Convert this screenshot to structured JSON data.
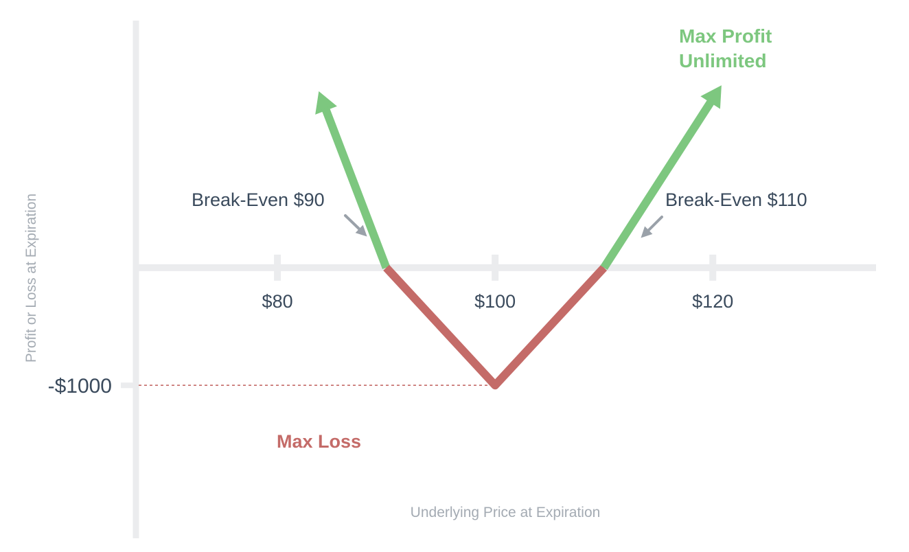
{
  "chart_data": {
    "type": "line",
    "xlabel": "Underlying Price at Expiration",
    "ylabel": "Profit or Loss at Expiration",
    "x_ticks": [
      {
        "value": 80,
        "label": "$80"
      },
      {
        "value": 100,
        "label": "$100"
      },
      {
        "value": 120,
        "label": "$120"
      }
    ],
    "y_ticks": [
      {
        "value": -1000,
        "label": "-$1000"
      }
    ],
    "xlim": [
      67,
      135
    ],
    "ylim": [
      -2300,
      2100
    ],
    "series": [
      {
        "color": "#7dc77f",
        "x": [
          83.8,
          90
        ],
        "y": [
          1500,
          0
        ],
        "arrow_end": "start"
      },
      {
        "color": "#c46b68",
        "x": [
          90,
          100,
          110
        ],
        "y": [
          0,
          -1000,
          0
        ]
      },
      {
        "color": "#7dc77f",
        "x": [
          110,
          120.8
        ],
        "y": [
          0,
          1550
        ],
        "arrow_end": "end"
      }
    ],
    "annotations": {
      "break_even_low": {
        "text": "Break-Even $90",
        "x": 90,
        "y": 0
      },
      "break_even_high": {
        "text": "Break-Even $110",
        "x": 110,
        "y": 0
      },
      "max_profit_line1": "Max Profit",
      "max_profit_line2": "Unlimited",
      "max_loss": "Max Loss"
    },
    "grid": false,
    "legend": "none",
    "colors": {
      "profit": "#7dc77f",
      "loss": "#c46b68",
      "axis": "#ebecee",
      "text": "#3a4a5c",
      "muted": "#a4abb3",
      "pointer": "#9aa1a9"
    }
  }
}
